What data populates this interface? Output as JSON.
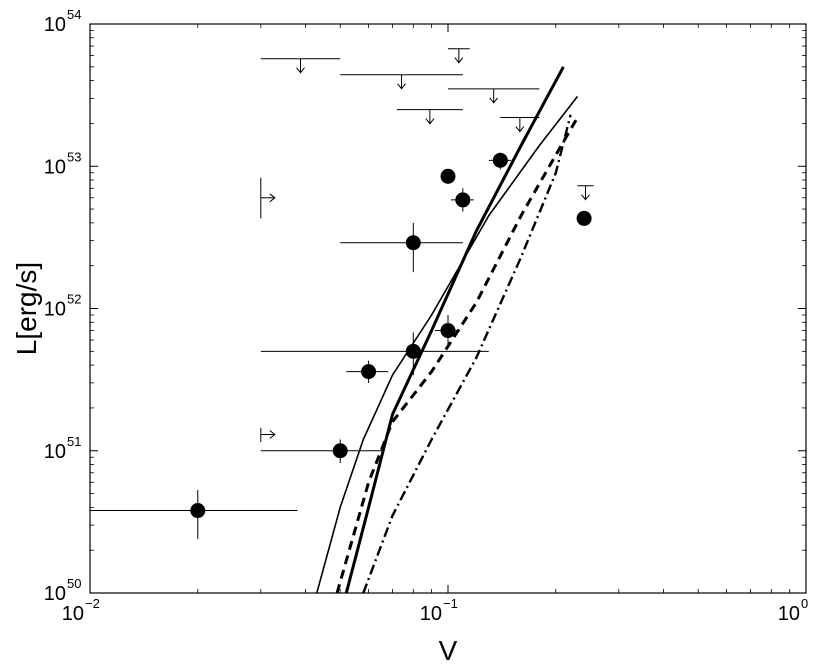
{
  "chart_data": {
    "type": "scatter",
    "xlabel": "V",
    "ylabel": "L[erg/s]",
    "x_scale": "log",
    "y_scale": "log",
    "xlim": [
      0.01,
      1
    ],
    "ylim": [
      1e+50,
      1e+54
    ],
    "grid": false,
    "x_ticks": [
      {
        "value": 0.01,
        "base": "10",
        "exp": "−2"
      },
      {
        "value": 0.1,
        "base": "10",
        "exp": "−1"
      },
      {
        "value": 1,
        "base": "10",
        "exp": "0"
      }
    ],
    "y_ticks": [
      {
        "value": 1e+50,
        "base": "10",
        "exp": "50"
      },
      {
        "value": 1e+51,
        "base": "10",
        "exp": "51"
      },
      {
        "value": 1e+52,
        "base": "10",
        "exp": "52"
      },
      {
        "value": 1e+53,
        "base": "10",
        "exp": "53"
      },
      {
        "value": 1e+54,
        "base": "10",
        "exp": "54"
      }
    ],
    "points": [
      {
        "x": 0.02,
        "y": 3.8e+50,
        "xerr": [
          0.01,
          0.038
        ],
        "yerr": [
          2.4e+50,
          5.3e+50
        ]
      },
      {
        "x": 0.05,
        "y": 1e+51,
        "xerr": [
          0.03,
          0.066
        ],
        "yerr": [
          8.2e+50,
          1.2e+51
        ]
      },
      {
        "x": 0.06,
        "y": 3.6e+51,
        "xerr": [
          0.052,
          0.068
        ],
        "yerr": [
          3e+51,
          4.3e+51
        ]
      },
      {
        "x": 0.08,
        "y": 5e+51,
        "xerr": [
          0.03,
          0.13
        ],
        "yerr": [
          3.4e+51,
          6.8e+51
        ]
      },
      {
        "x": 0.1,
        "y": 7e+51,
        "xerr": [
          0.092,
          0.108
        ],
        "yerr": [
          5.5e+51,
          9e+51
        ]
      },
      {
        "x": 0.08,
        "y": 2.9e+52,
        "xerr": [
          0.05,
          0.11
        ],
        "yerr": [
          1.8e+52,
          4e+52
        ]
      },
      {
        "x": 0.1,
        "y": 8.5e+52,
        "xerr": null,
        "yerr": null
      },
      {
        "x": 0.11,
        "y": 5.8e+52,
        "xerr": [
          0.102,
          0.118
        ],
        "yerr": [
          4.8e+52,
          7e+52
        ]
      },
      {
        "x": 0.14,
        "y": 1.1e+53,
        "xerr": [
          0.13,
          0.15
        ],
        "yerr": [
          9.5e+52,
          1.25e+53
        ]
      },
      {
        "x": 0.24,
        "y": 4.3e+52,
        "xerr": null,
        "yerr": null
      }
    ],
    "upper_limits": [
      {
        "y": 5.7e+53,
        "x0": 0.03,
        "x1": 0.05
      },
      {
        "y": 4.4e+53,
        "x0": 0.05,
        "x1": 0.11
      },
      {
        "y": 6.7e+53,
        "x0": 0.1,
        "x1": 0.115
      },
      {
        "y": 3.5e+53,
        "x0": 0.1,
        "x1": 0.18
      },
      {
        "y": 2.5e+53,
        "x0": 0.072,
        "x1": 0.11
      },
      {
        "y": 2.2e+53,
        "x0": 0.14,
        "x1": 0.18
      },
      {
        "y": 7.3e+52,
        "x0": 0.23,
        "x1": 0.255
      }
    ],
    "lower_limits": [
      {
        "x": 0.03,
        "y": 6e+52,
        "y0": 4.3e+52,
        "y1": 8.3e+52
      },
      {
        "x": 0.03,
        "y": 1.3e+51,
        "y0": 1.15e+51,
        "y1": 1.45e+51
      }
    ],
    "curves": [
      {
        "style": "thick-solid",
        "points": [
          [
            0.052,
            1e+50
          ],
          [
            0.06,
            4e+50
          ],
          [
            0.07,
            1.8e+51
          ],
          [
            0.09,
            7e+51
          ],
          [
            0.12,
            3.5e+52
          ],
          [
            0.16,
            1.4e+53
          ],
          [
            0.21,
            5e+53
          ]
        ]
      },
      {
        "style": "thin-solid",
        "points": [
          [
            0.043,
            1e+50
          ],
          [
            0.05,
            4e+50
          ],
          [
            0.058,
            1.2e+51
          ],
          [
            0.07,
            3.4e+51
          ],
          [
            0.09,
            9e+51
          ],
          [
            0.13,
            4.5e+52
          ],
          [
            0.18,
            1.4e+53
          ],
          [
            0.23,
            3.1e+53
          ]
        ]
      },
      {
        "style": "dashed",
        "points": [
          [
            0.049,
            1e+50
          ],
          [
            0.06,
            6e+50
          ],
          [
            0.07,
            1.6e+51
          ],
          [
            0.09,
            3.6e+51
          ],
          [
            0.12,
            1.1e+52
          ],
          [
            0.16,
            4.5e+52
          ],
          [
            0.2,
            1.2e+53
          ],
          [
            0.23,
            2.2e+53
          ]
        ]
      },
      {
        "style": "dash-dot",
        "points": [
          [
            0.058,
            1e+50
          ],
          [
            0.07,
            3.5e+50
          ],
          [
            0.09,
            1.2e+51
          ],
          [
            0.12,
            4.5e+51
          ],
          [
            0.16,
            2.3e+52
          ],
          [
            0.2,
            9e+52
          ],
          [
            0.22,
            2.3e+53
          ]
        ]
      }
    ]
  }
}
